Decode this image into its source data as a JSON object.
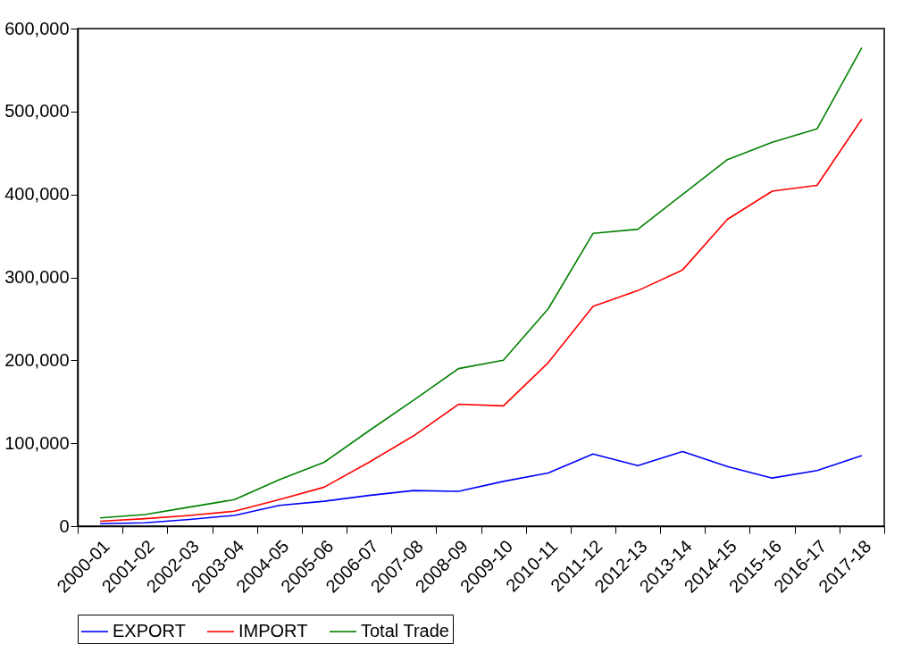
{
  "chart_data": {
    "type": "line",
    "categories": [
      "2000-01",
      "2001-02",
      "2002-03",
      "2003-04",
      "2004-05",
      "2005-06",
      "2006-07",
      "2007-08",
      "2008-09",
      "2009-10",
      "2010-11",
      "2011-12",
      "2012-13",
      "2013-14",
      "2014-15",
      "2015-16",
      "2016-17",
      "2017-18"
    ],
    "series": [
      {
        "name": "EXPORT",
        "color": "#0000ff",
        "values": [
          3000,
          4000,
          8000,
          13000,
          25000,
          30000,
          37000,
          43000,
          42000,
          54000,
          64000,
          87000,
          73000,
          90000,
          72000,
          58000,
          67000,
          85000
        ]
      },
      {
        "name": "IMPORT",
        "color": "#ff0000",
        "values": [
          6000,
          9000,
          13000,
          18000,
          32000,
          47000,
          77000,
          109000,
          147000,
          145000,
          197000,
          265000,
          284000,
          309000,
          370000,
          404000,
          411000,
          491000
        ]
      },
      {
        "name": "Total Trade",
        "color": "#008000",
        "values": [
          10000,
          14000,
          23000,
          32000,
          56000,
          77000,
          115000,
          152000,
          190000,
          200000,
          262000,
          353000,
          358000,
          400000,
          442000,
          463000,
          479000,
          577000
        ]
      }
    ],
    "ylim": [
      0,
      600000
    ],
    "yticks": [
      0,
      {
        "value": 100000,
        "label": "100,000"
      },
      {
        "value": 200000,
        "label": "200,000"
      },
      {
        "value": 300000,
        "label": "300,000"
      },
      {
        "value": 400000,
        "label": "400,000"
      },
      {
        "value": 500000,
        "label": "500,000"
      },
      {
        "value": 600000,
        "label": "600,000"
      }
    ],
    "grid": false,
    "legend": "bottom",
    "line_style": "solid",
    "marker": "none"
  }
}
